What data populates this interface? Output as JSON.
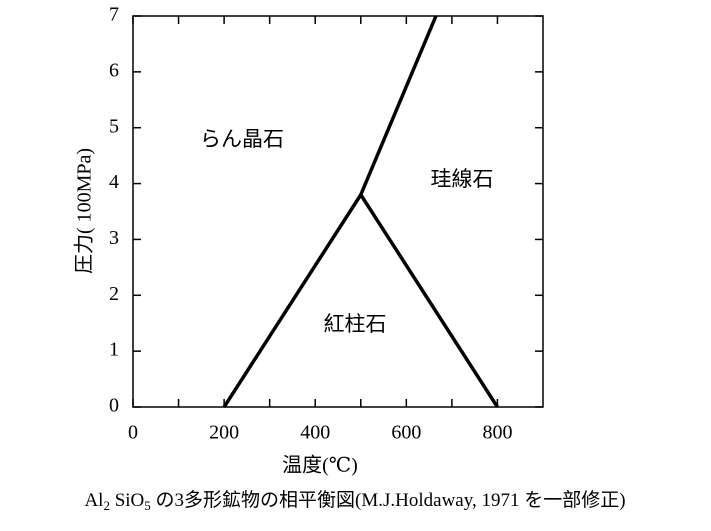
{
  "chart_data": {
    "type": "line",
    "xlabel": "温度(℃)",
    "ylabel": "圧力( 100MPa)",
    "caption": [
      "Al",
      "2",
      " SiO",
      "5",
      " の3多形鉱物の相平衡図(M.J.Holdaway, 1971 を一部修正)"
    ],
    "xlim": [
      0,
      900
    ],
    "ylim": [
      0,
      7
    ],
    "xticks": [
      0,
      200,
      400,
      600,
      800
    ],
    "xminorticks": [
      100,
      300,
      500,
      700
    ],
    "yticks": [
      0,
      1,
      2,
      3,
      4,
      5,
      6,
      7
    ],
    "color": "#000000",
    "series": [
      {
        "x": [
          200,
          500
        ],
        "values": [
          0,
          3.8
        ]
      },
      {
        "x": [
          500,
          800
        ],
        "values": [
          3.8,
          0
        ]
      },
      {
        "x": [
          500,
          665
        ],
        "values": [
          3.8,
          7
        ]
      }
    ],
    "annotations": [
      "らん晶石",
      "珪線石",
      "紅柱石"
    ]
  }
}
